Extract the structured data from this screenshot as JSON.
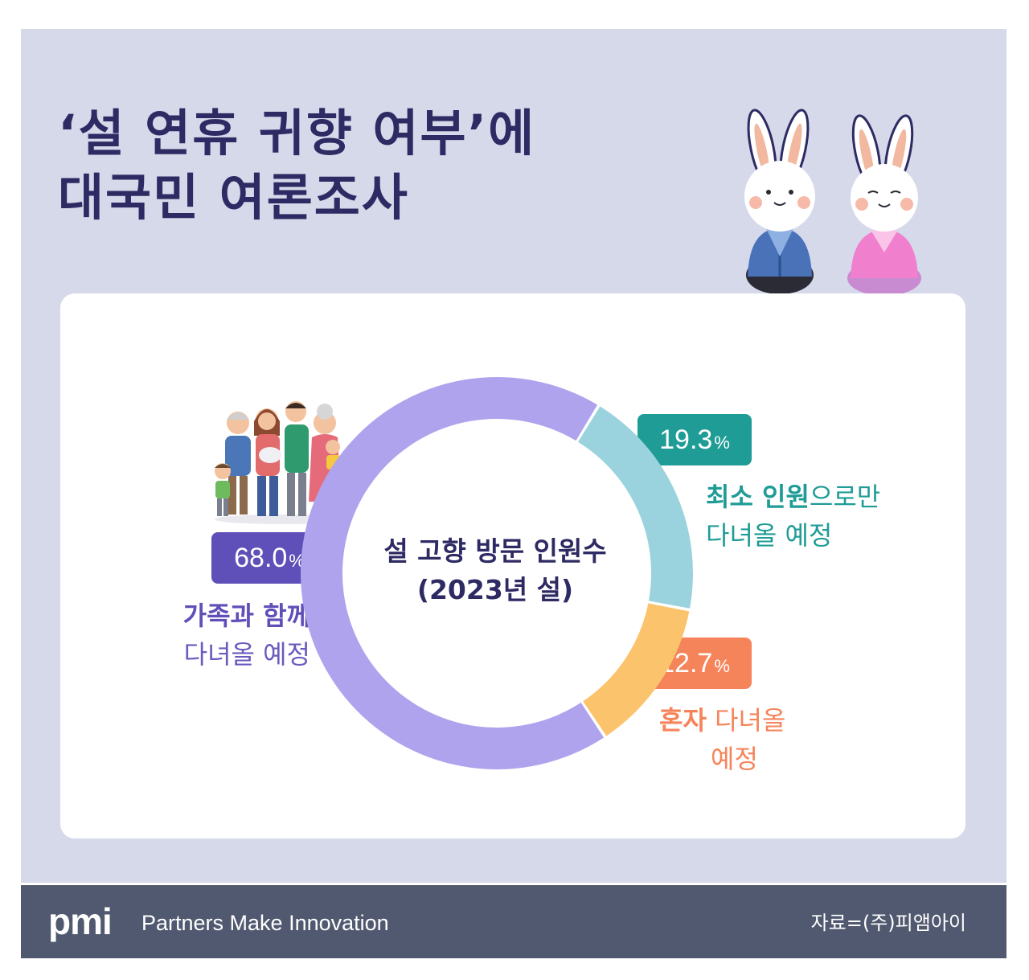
{
  "title": {
    "line1": "‘설 연휴 귀향 여부’에",
    "line2": "대국민 여론조사"
  },
  "colors": {
    "background": "#d5d9ea",
    "title": "#2e2a63",
    "family": "#6b5bbf",
    "minimum": "#1f9c96",
    "alone": "#f6845a",
    "footer": "#515970"
  },
  "chart_data": {
    "type": "pie",
    "variant": "donut",
    "title": "설 고향 방문 인원수",
    "subtitle": "(2023년 설)",
    "unit": "%",
    "categories": [
      "가족과 함께 다녀올 예정",
      "최소 인원으로만 다녀올 예정",
      "혼자 다녀올 예정"
    ],
    "values": [
      68.0,
      19.3,
      12.7
    ],
    "series_colors": [
      "#afa3ee",
      "#9ad3de",
      "#fcc36d"
    ],
    "badge_colors": [
      "#5f4fb8",
      "#1f9c96",
      "#f6845a"
    ]
  },
  "labels": {
    "family": {
      "value": "68.0",
      "sign": "%",
      "bold": "가족과 함께",
      "rest": "다녀올 예정"
    },
    "minimum": {
      "value": "19.3",
      "sign": "%",
      "bold": "최소 인원",
      "rest1": "으로만",
      "rest2": "다녀올 예정"
    },
    "alone": {
      "value": "12.7",
      "sign": "%",
      "bold": "혼자",
      "rest1": "다녀올",
      "rest2": "예정"
    }
  },
  "footer": {
    "logo": "pmi",
    "tagline": "Partners Make Innovation",
    "source": "자료=(주)피앰아이"
  }
}
